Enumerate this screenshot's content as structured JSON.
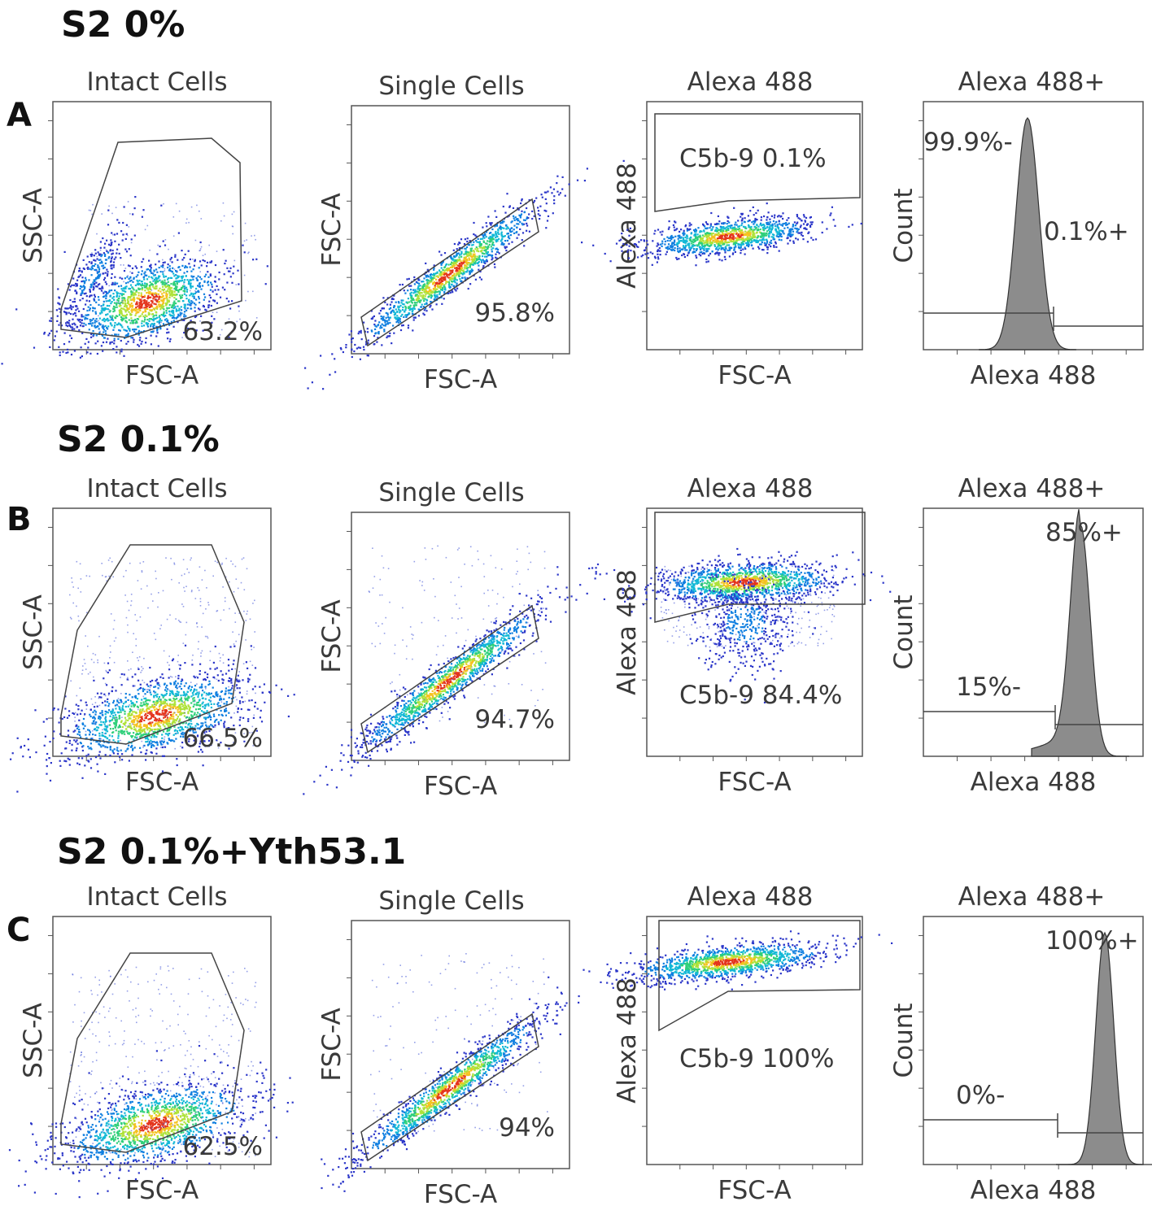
{
  "chart_data": [
    {
      "panel": "A",
      "type": "scatter",
      "condition": "S2 0%",
      "plots": [
        {
          "kind": "scatter",
          "title": "Intact Cells",
          "xlabel": "FSC-A",
          "ylabel": "SSC-A",
          "gate": "Intact Cells",
          "gate_pct": "63.2%"
        },
        {
          "kind": "scatter",
          "title": "Single Cells",
          "xlabel": "FSC-A",
          "ylabel": "FSC-A",
          "gate": "Single Cells",
          "gate_pct": "95.8%"
        },
        {
          "kind": "scatter",
          "title": "Alexa 488",
          "xlabel": "FSC-A",
          "ylabel": "Alexa 488",
          "gate": "C5b-9",
          "gate_label": "C5b-9  0.1%"
        },
        {
          "kind": "histogram",
          "title": "Alexa 488+",
          "xlabel": "Alexa 488",
          "ylabel": "Count",
          "negative_label": "99.9%-",
          "positive_label": "0.1%+",
          "negative_pct": 99.9,
          "positive_pct": 0.1
        }
      ]
    },
    {
      "panel": "B",
      "type": "scatter",
      "condition": "S2 0.1%",
      "plots": [
        {
          "kind": "scatter",
          "title": "Intact Cells",
          "xlabel": "FSC-A",
          "ylabel": "SSC-A",
          "gate": "Intact Cells",
          "gate_pct": "66.5%"
        },
        {
          "kind": "scatter",
          "title": "Single Cells",
          "xlabel": "FSC-A",
          "ylabel": "FSC-A",
          "gate": "Single Cells",
          "gate_pct": "94.7%"
        },
        {
          "kind": "scatter",
          "title": "Alexa 488",
          "xlabel": "FSC-A",
          "ylabel": "Alexa 488",
          "gate": "C5b-9",
          "gate_label": "C5b-9 84.4%"
        },
        {
          "kind": "histogram",
          "title": "Alexa 488+",
          "xlabel": "Alexa 488",
          "ylabel": "Count",
          "negative_label": "15%-",
          "positive_label": "85%+",
          "negative_pct": 15,
          "positive_pct": 85
        }
      ]
    },
    {
      "panel": "C",
      "type": "scatter",
      "condition": "S2 0.1%+Yth53.1",
      "plots": [
        {
          "kind": "scatter",
          "title": "Intact Cells",
          "xlabel": "FSC-A",
          "ylabel": "SSC-A",
          "gate": "Intact Cells",
          "gate_pct": "62.5%"
        },
        {
          "kind": "scatter",
          "title": "Single Cells",
          "xlabel": "FSC-A",
          "ylabel": "FSC-A",
          "gate": "Single Cells",
          "gate_pct": "94%"
        },
        {
          "kind": "scatter",
          "title": "Alexa 488",
          "xlabel": "FSC-A",
          "ylabel": "Alexa 488",
          "gate": "C5b-9",
          "gate_label": "C5b-9 100%"
        },
        {
          "kind": "histogram",
          "title": "Alexa 488+",
          "xlabel": "Alexa 488",
          "ylabel": "Count",
          "negative_label": "0%-",
          "positive_label": "100%+",
          "negative_pct": 0,
          "positive_pct": 100
        }
      ]
    }
  ]
}
